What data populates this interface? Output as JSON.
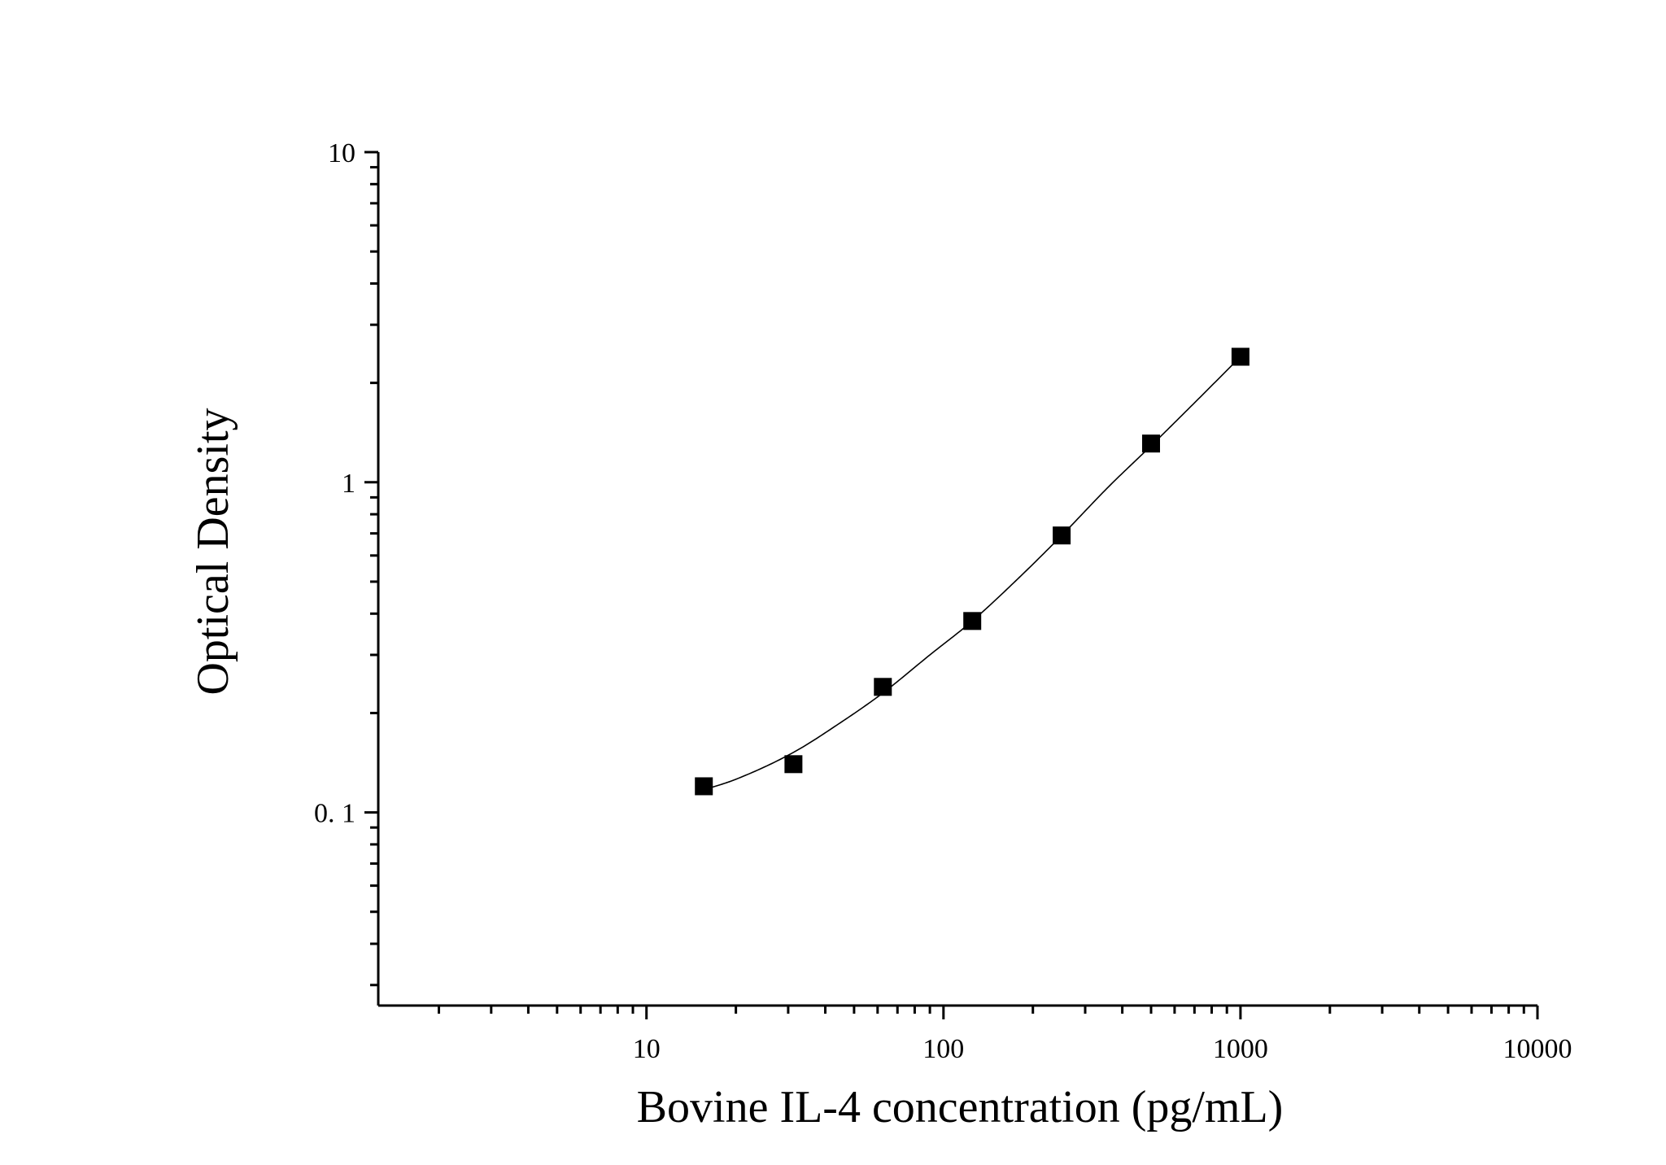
{
  "chart_data": {
    "type": "scatter",
    "title": "",
    "xlabel": "Bovine IL-4 concentration (pg/mL)",
    "ylabel": "Optical Density",
    "x_scale": "log",
    "y_scale": "log",
    "xlim": [
      1.25,
      10000
    ],
    "ylim": [
      0.026,
      10
    ],
    "x_ticks": [
      {
        "value": 10,
        "label": "10"
      },
      {
        "value": 100,
        "label": "100"
      },
      {
        "value": 1000,
        "label": "1000"
      },
      {
        "value": 10000,
        "label": "10000"
      }
    ],
    "y_ticks": [
      {
        "value": 0.1,
        "label": "0. 1"
      },
      {
        "value": 1,
        "label": "1"
      },
      {
        "value": 10,
        "label": "10"
      }
    ],
    "grid": false,
    "legend": "none",
    "series": [
      {
        "marker": "square",
        "color": "#000000",
        "x": [
          15.6,
          31.25,
          62.5,
          125,
          250,
          500,
          1000
        ],
        "y": [
          0.12,
          0.14,
          0.24,
          0.38,
          0.69,
          1.31,
          2.4
        ]
      }
    ],
    "fit_curve": {
      "style": "thin-line",
      "color": "#000000",
      "x": [
        15.6,
        20,
        31.25,
        45,
        62.5,
        90,
        125,
        180,
        250,
        360,
        500,
        700,
        1000
      ],
      "y": [
        0.117,
        0.126,
        0.152,
        0.187,
        0.23,
        0.3,
        0.38,
        0.515,
        0.69,
        0.97,
        1.29,
        1.74,
        2.4
      ]
    }
  }
}
